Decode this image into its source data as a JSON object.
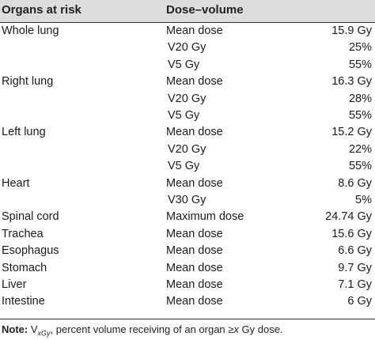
{
  "header": {
    "col1": "Organs at risk",
    "col2": "Dose–volume"
  },
  "rows": [
    {
      "organ": "Whole lung",
      "metric": "Mean dose",
      "value": "15.9 Gy"
    },
    {
      "organ": "",
      "metric": "V20 Gy",
      "value": "25%"
    },
    {
      "organ": "",
      "metric": "V5 Gy",
      "value": "55%"
    },
    {
      "organ": "Right lung",
      "metric": "Mean dose",
      "value": "16.3 Gy"
    },
    {
      "organ": "",
      "metric": "V20 Gy",
      "value": "28%"
    },
    {
      "organ": "",
      "metric": "V5 Gy",
      "value": "55%"
    },
    {
      "organ": "Left lung",
      "metric": "Mean dose",
      "value": "15.2 Gy"
    },
    {
      "organ": "",
      "metric": "V20 Gy",
      "value": "22%"
    },
    {
      "organ": "",
      "metric": "V5 Gy",
      "value": "55%"
    },
    {
      "organ": "Heart",
      "metric": "Mean dose",
      "value": "8.6 Gy"
    },
    {
      "organ": "",
      "metric": "V30 Gy",
      "value": "5%"
    },
    {
      "organ": "Spinal cord",
      "metric": "Maximum dose",
      "value": "24.74 Gy"
    },
    {
      "organ": "Trachea",
      "metric": "Mean dose",
      "value": "15.6 Gy"
    },
    {
      "organ": "Esophagus",
      "metric": "Mean dose",
      "value": "6.6 Gy"
    },
    {
      "organ": "Stomach",
      "metric": "Mean dose",
      "value": "9.7 Gy"
    },
    {
      "organ": "Liver",
      "metric": "Mean dose",
      "value": "7.1 Gy"
    },
    {
      "organ": "Intestine",
      "metric": "Mean dose",
      "value": "6 Gy"
    }
  ],
  "note": {
    "label": "Note:",
    "v_letter": "V",
    "v_sub": "xGy",
    "text_a": ", percent volume receiving of an organ ≥",
    "x_letter": "x",
    "text_b": " Gy dose."
  }
}
